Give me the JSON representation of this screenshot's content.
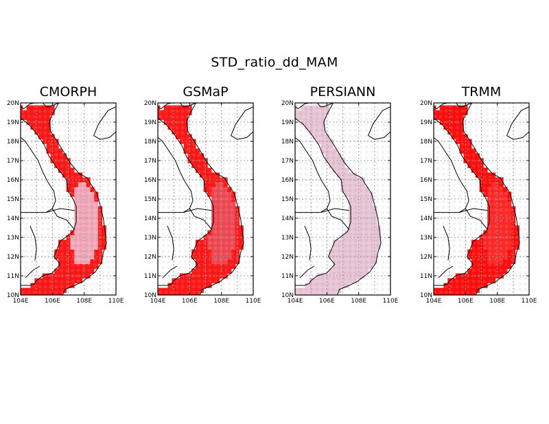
{
  "figure": {
    "title": "STD_ratio_dd_MAM",
    "x_ticks": [
      "104E",
      "106E",
      "108E",
      "110E"
    ],
    "y_ticks": [
      "10N",
      "11N",
      "12N",
      "13N",
      "14N",
      "15N",
      "16N",
      "17N",
      "18N",
      "19N",
      "20N"
    ]
  },
  "map_extent": {
    "lon": [
      104,
      110
    ],
    "lat": [
      10,
      20
    ]
  },
  "panels": [
    {
      "name": "CMORPH",
      "cell_color": "#ff1a1a",
      "inland_color": "#f2a8b8"
    },
    {
      "name": "GSMaP",
      "cell_color": "#ff1a1a",
      "inland_color": "#f04a55"
    },
    {
      "name": "PERSIANN",
      "cell_color": "#e8c5d6",
      "inland_color": "#e8c5d6"
    },
    {
      "name": "TRMM",
      "cell_color": "#ff1010",
      "inland_color": "#ff2a2a"
    }
  ],
  "colors": {
    "grid": "#9a9a9a",
    "frame": "#000000",
    "coast": "#000000"
  }
}
